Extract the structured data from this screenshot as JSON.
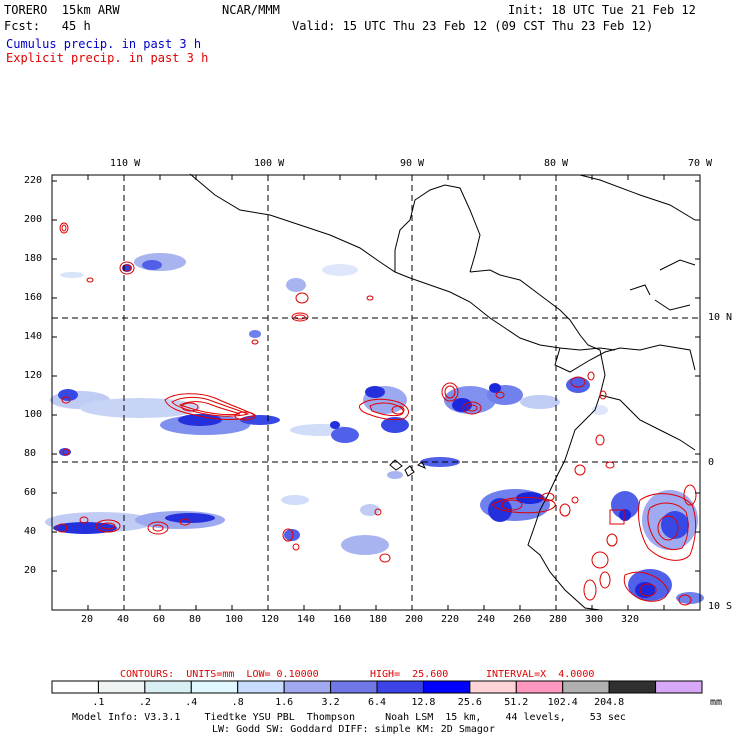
{
  "header": {
    "model": "TORERO  15km ARW",
    "org": "NCAR/MMM",
    "init": "Init: 18 UTC Tue 21 Feb 12",
    "fcst": "Fcst:   45 h",
    "valid": "Valid: 15 UTC Thu 23 Feb 12 (09 CST Thu 23 Feb 12)",
    "cumulus_label": "Cumulus precip. in past 3 h",
    "explicit_label": "Explicit precip. in past 3 h"
  },
  "colors": {
    "cumulus": "#0000c8",
    "explicit": "#e00000"
  },
  "map": {
    "top_lon_labels": [
      "110 W",
      "100 W",
      "90 W",
      "80 W",
      "70 W"
    ],
    "right_lat_labels": [
      "10 N",
      "0",
      "10 S"
    ],
    "y_ticks": [
      "220",
      "200",
      "180",
      "160",
      "140",
      "120",
      "100",
      "80",
      "60",
      "40",
      "20"
    ],
    "x_ticks": [
      "20",
      "40",
      "60",
      "80",
      "100",
      "120",
      "140",
      "160",
      "180",
      "200",
      "220",
      "240",
      "260",
      "280",
      "300",
      "320"
    ]
  },
  "contours_line": {
    "prefix": "CONTOURS:  UNITS=mm  LOW= 0.10000",
    "high": "HIGH=  25.600",
    "interval": "INTERVAL=X  4.0000"
  },
  "colorbar": {
    "labels": [
      ".1",
      ".2",
      ".4",
      ".8",
      "1.6",
      "3.2",
      "6.4",
      "12.8",
      "25.6",
      "51.2",
      "102.4",
      "204.8"
    ],
    "unit": "mm",
    "colors": [
      "#ffffff",
      "#eef4f4",
      "#d8f0f4",
      "#e0f8ff",
      "#c8dcff",
      "#a0a8f0",
      "#7078e8",
      "#3c44e8",
      "#0000ff",
      "#ffd4d8",
      "#ff98c0",
      "#b0b0b0",
      "#303030",
      "#d8a8f8"
    ]
  },
  "footer": {
    "line1": "Model Info: V3.3.1    Tiedtke YSU PBL  Thompson     Noah LSM  15 km,    44 levels,    53 sec",
    "line2": "LW: Godd SW: Goddard DIFF: simple KM: 2D Smagor"
  }
}
